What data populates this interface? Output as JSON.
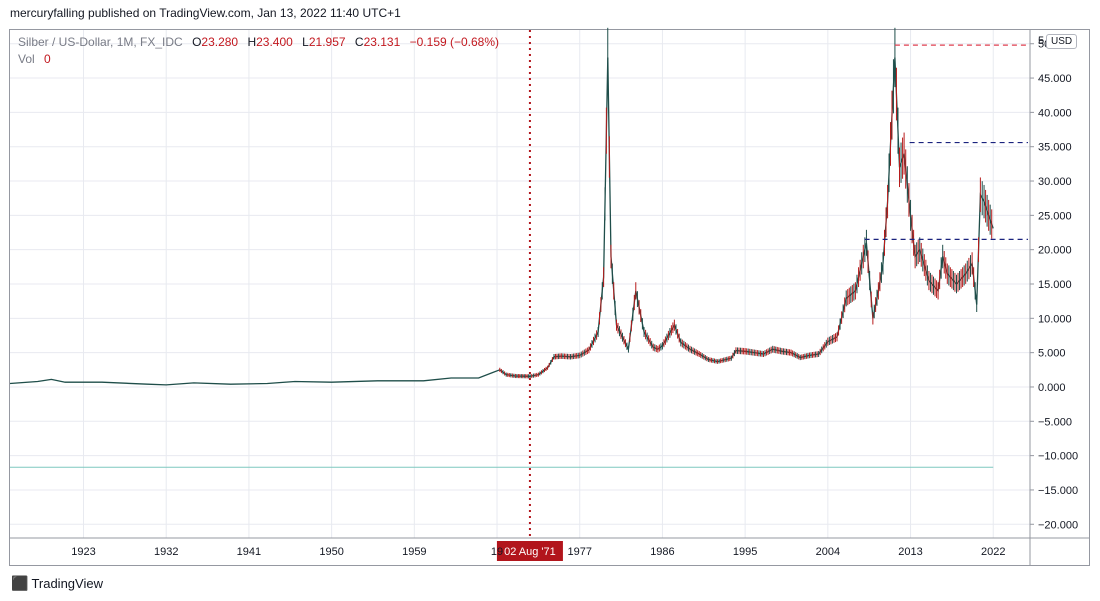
{
  "publisher": "mercuryfalling published on TradingView.com, Jan 13, 2022 11:40 UTC+1",
  "legend": {
    "symbol": "Silber / US-Dollar, 1M, FX_IDC",
    "o_label": "O",
    "o_value": "23.280",
    "h_label": "H",
    "h_value": "23.400",
    "l_label": "L",
    "l_value": "21.957",
    "c_label": "C",
    "c_value": "23.131",
    "change": "−0.159 (−0.68%)",
    "vol_label": "Vol",
    "vol_value": "0"
  },
  "currency_button": "USD",
  "axis_top_clip": "5",
  "footer_brand": "TradingView",
  "crosshair_label": "02 Aug '71",
  "colors": {
    "up": "#26a69a",
    "down": "#ef5350",
    "line": "#1f4e4a",
    "crosshair": "#b2151c",
    "hline_red": "#e04050",
    "hline_blue": "#1a237e",
    "grid": "#e8eaf0"
  },
  "chart_data": {
    "type": "line",
    "xlabel": "",
    "ylabel": "",
    "x_ticks": [
      "1923",
      "1932",
      "1941",
      "1950",
      "1959",
      "19",
      "1977",
      "1986",
      "1995",
      "2004",
      "2013",
      "2022"
    ],
    "y_ticks": [
      "50.000",
      "45.000",
      "40.000",
      "35.000",
      "30.000",
      "25.000",
      "20.000",
      "15.000",
      "10.000",
      "5.000",
      "0.000",
      "−5.000",
      "−10.000",
      "−15.000",
      "−20.000"
    ],
    "xlim": [
      1915,
      2026
    ],
    "ylim": [
      -22,
      52
    ],
    "grid": true,
    "series": [
      {
        "x": [
          1915,
          1918,
          1919.5,
          1921,
          1925,
          1930,
          1932,
          1935,
          1939,
          1943,
          1946,
          1950,
          1955,
          1960,
          1963,
          1966,
          1967.5,
          1968.3,
          1969,
          1970,
          1971.6,
          1972.5,
          1973.5,
          1974.2,
          1975,
          1976,
          1977,
          1978,
          1979,
          1979.6,
          1980.05,
          1980.4,
          1981,
          1982.3,
          1983.1,
          1984,
          1985,
          1985.5,
          1986,
          1987.3,
          1988,
          1989,
          1990,
          1991,
          1992,
          1993.5,
          1994,
          1995,
          1996,
          1997,
          1998,
          1999,
          2000,
          2001,
          2002,
          2003,
          2004,
          2005,
          2006,
          2007,
          2008.2,
          2008.9,
          2009.5,
          2010,
          2010.5,
          2011.3,
          2011.8,
          2012.3,
          2013,
          2013.5,
          2014,
          2015,
          2016,
          2016.5,
          2017,
          2018,
          2019,
          2019.7,
          2020.2,
          2020.6,
          2021,
          2021.5,
          2022
        ],
        "y": [
          0.5,
          0.8,
          1.1,
          0.7,
          0.7,
          0.4,
          0.3,
          0.6,
          0.4,
          0.5,
          0.8,
          0.7,
          0.9,
          0.9,
          1.3,
          1.3,
          2.1,
          2.5,
          1.8,
          1.6,
          1.55,
          1.8,
          2.8,
          4.4,
          4.5,
          4.4,
          4.6,
          5.4,
          8.0,
          16.0,
          48.0,
          19.0,
          9.0,
          5.5,
          14.0,
          8.0,
          5.8,
          5.5,
          6.0,
          9.0,
          6.5,
          5.5,
          4.8,
          4.0,
          3.7,
          4.2,
          5.3,
          5.2,
          5.0,
          4.8,
          5.5,
          5.2,
          5.0,
          4.3,
          4.6,
          4.8,
          6.6,
          7.3,
          12.9,
          14.0,
          21.0,
          10.0,
          14.0,
          18.0,
          27.0,
          48.0,
          32.0,
          34.0,
          25.0,
          19.0,
          20.0,
          15.5,
          14.0,
          19.0,
          16.5,
          15.0,
          16.5,
          18.0,
          12.0,
          28.0,
          27.0,
          25.0,
          23.1
        ]
      }
    ],
    "horizontal_lines": [
      {
        "y": 49.8,
        "from_x": 2011.3,
        "style": "red-dashed"
      },
      {
        "y": 35.6,
        "from_x": 2012.9,
        "style": "blue-dashed"
      },
      {
        "y": 21.5,
        "from_x": 2008.0,
        "style": "blue-dashed"
      },
      {
        "y": -11.7,
        "from_x": 1915,
        "to_x": 2022,
        "style": "faint-solid"
      }
    ],
    "crosshair_x": 1971.58
  }
}
